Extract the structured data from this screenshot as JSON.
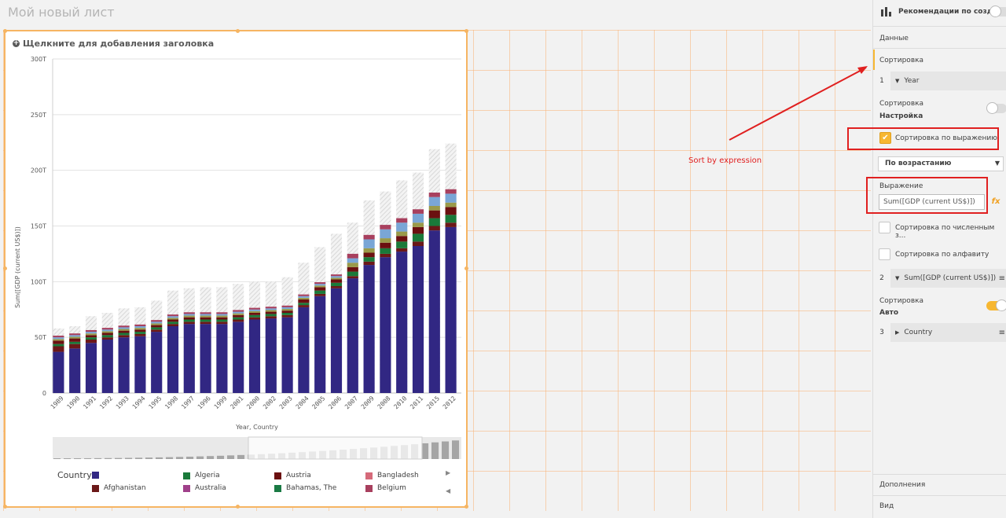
{
  "sheet_title": "Мой новый лист",
  "chart": {
    "title_placeholder": "Щелкните для добавления заголовка",
    "y_axis_label": "Sum([GDP (current US$)])",
    "x_axis_label": "Year, Country",
    "legend_title": "Country"
  },
  "chart_data": {
    "type": "bar",
    "stacked": true,
    "categories": [
      "1989",
      "1990",
      "1991",
      "1992",
      "1993",
      "1994",
      "1995",
      "1998",
      "1997",
      "1996",
      "1999",
      "2001",
      "2000",
      "2002",
      "2003",
      "2004",
      "2005",
      "2006",
      "2007",
      "2009",
      "2008",
      "2010",
      "2011",
      "2015",
      "2012"
    ],
    "series": [
      {
        "name": "",
        "values": [
          37,
          40,
          45,
          48,
          50,
          51,
          55,
          60,
          62,
          62,
          62,
          64,
          66,
          67,
          68,
          77,
          87,
          94,
          103,
          115,
          122,
          127,
          132,
          146,
          149
        ]
      },
      {
        "name": "Afghanistan",
        "values": [
          5,
          4,
          3,
          2,
          2,
          2,
          2,
          2,
          2,
          2,
          2,
          2,
          2,
          2,
          2,
          2,
          2,
          2,
          2,
          3,
          3,
          3,
          4,
          4,
          4
        ]
      },
      {
        "name": "Algeria",
        "values": [
          2,
          2,
          2,
          2,
          2,
          2,
          2,
          2,
          2,
          2,
          2,
          2,
          2,
          2,
          2,
          2,
          3,
          3,
          4,
          4,
          5,
          6,
          7,
          7,
          7
        ]
      },
      {
        "name": "Austria",
        "values": [
          3,
          3,
          2,
          2,
          2,
          2,
          2,
          2,
          2,
          2,
          2,
          2,
          2,
          2,
          2,
          3,
          3,
          3,
          4,
          4,
          5,
          5,
          6,
          7,
          7
        ]
      }
    ],
    "overflow_totals": [
      58,
      60,
      69,
      72,
      76,
      77,
      83,
      92,
      94,
      95,
      95,
      98,
      100,
      100,
      104,
      117,
      131,
      143,
      153,
      173,
      181,
      191,
      198,
      219,
      224
    ],
    "y_ticks": [
      "0",
      "50T",
      "100T",
      "150T",
      "200T",
      "250T",
      "300T"
    ],
    "ylim": [
      0,
      300
    ],
    "grid": true,
    "legend_position": "bottom",
    "colors": {
      "base": "#312783",
      "overflow": "#e3e3e3"
    }
  },
  "legend": [
    {
      "label": "",
      "color": "#312783"
    },
    {
      "label": "Algeria",
      "color": "#1a7a3a"
    },
    {
      "label": "Austria",
      "color": "#6b1010"
    },
    {
      "label": "Bangladesh",
      "color": "#d56a7a"
    },
    {
      "label": "Afghanistan",
      "color": "#6b1818"
    },
    {
      "label": "Australia",
      "color": "#a0408a"
    },
    {
      "label": "Bahamas, The",
      "color": "#1a7a44"
    },
    {
      "label": "Belgium",
      "color": "#a8405e"
    }
  ],
  "panel": {
    "header": "Рекомендации по созд...",
    "data_tab": "Данные",
    "sort_tab": "Сортировка",
    "field1_num": "1",
    "field1": "Year",
    "sort_label": "Сортировка",
    "sort_custom": "Настройка",
    "sort_by_expression": "Сортировка по выражению",
    "order_select": "По возрастанию",
    "expression_label": "Выражение",
    "expression_value": "Sum([GDP (current US$)])",
    "sort_numeric": "Сортировка по численным з...",
    "sort_alpha": "Сортировка по алфавиту",
    "field2_num": "2",
    "field2": "Sum([GDP (current US$)])",
    "sort_label2": "Сортировка",
    "sort_auto": "Авто",
    "field3_num": "3",
    "field3": "Country",
    "addons": "Дополнения",
    "view": "Вид"
  },
  "annotation": "Sort by expression",
  "accent_color": "#f7b731"
}
